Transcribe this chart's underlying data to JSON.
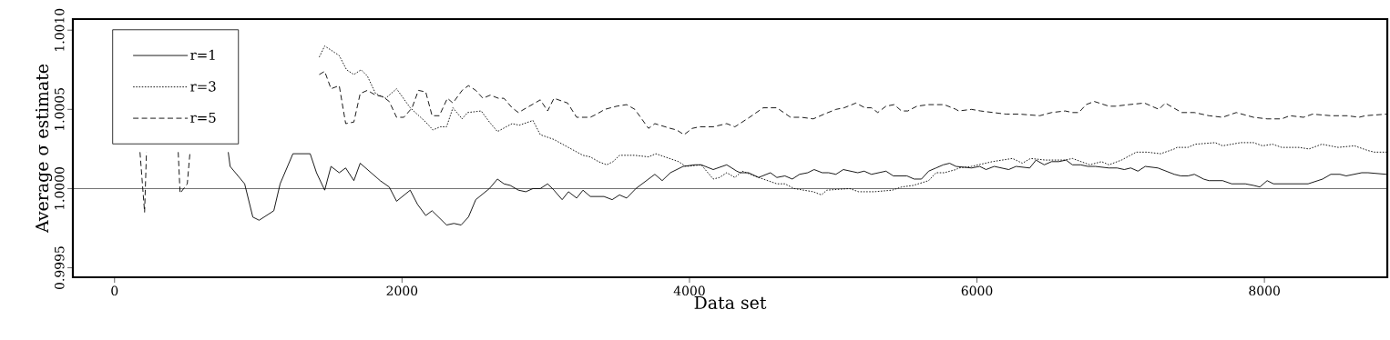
{
  "chart_data": {
    "type": "line",
    "xlabel": "Data set",
    "ylabel": "Average σ estimate",
    "xlim": [
      -290,
      8855
    ],
    "ylim": [
      0.99944,
      1.00107
    ],
    "xticks": [
      0,
      2000,
      4000,
      6000,
      8000
    ],
    "yticks": [
      {
        "value": 0.9995,
        "label": "0.9995"
      },
      {
        "value": 1.0,
        "label": "1.0000"
      },
      {
        "value": 1.0005,
        "label": "1.0005"
      },
      {
        "value": 1.001,
        "label": "1.0010"
      }
    ],
    "legend": "top left",
    "ref_lines": [
      {
        "axis": "y",
        "value": 1.0,
        "color": "#000000",
        "line_style": "solid"
      }
    ],
    "series": [
      {
        "name": "r=1",
        "color": "#000000",
        "line_style": "solid",
        "x": [
          791,
          804,
          905,
          962,
          1006,
          1108,
          1152,
          1241,
          1361,
          1405,
          1462,
          1506,
          1563,
          1608,
          1665,
          1709,
          1848,
          1911,
          1962,
          2057,
          2108,
          2165,
          2209,
          2310,
          2361,
          2411,
          2462,
          2513,
          2608,
          2664,
          2709,
          2753,
          2810,
          2861,
          2911,
          2962,
          3013,
          3057,
          3114,
          3158,
          3215,
          3259,
          3310,
          3405,
          3462,
          3513,
          3563,
          3627,
          3715,
          3759,
          3810,
          3867,
          3956,
          4038,
          4082,
          4165,
          4259,
          4329,
          4354,
          4411,
          4481,
          4563,
          4608,
          4664,
          4715,
          4766,
          4823,
          4867,
          4924,
          4968,
          5019,
          5070,
          5171,
          5215,
          5266,
          5367,
          5418,
          5513,
          5563,
          5614,
          5664,
          5715,
          5766,
          5810,
          5854,
          5962,
          6019,
          6063,
          6120,
          6221,
          6272,
          6367,
          6411,
          6468,
          6519,
          6569,
          6620,
          6664,
          6721,
          6772,
          6823,
          6918,
          6975,
          7025,
          7070,
          7120,
          7171,
          7259,
          7373,
          7418,
          7468,
          7513,
          7576,
          7614,
          7709,
          7772,
          7816,
          7867,
          7924,
          7968,
          8019,
          8063,
          8177,
          8304,
          8405,
          8462,
          8525,
          8569,
          8677,
          8721,
          8848
        ],
        "values": [
          1.00023,
          1.00014,
          1.00003,
          0.99982,
          0.9998,
          0.99986,
          1.00003,
          1.00022,
          1.00022,
          1.0001,
          0.99999,
          1.00014,
          1.0001,
          1.00013,
          1.00005,
          1.00016,
          1.00005,
          1.00001,
          0.99992,
          0.99999,
          0.9999,
          0.99983,
          0.99986,
          0.99977,
          0.99978,
          0.99977,
          0.99982,
          0.99993,
          1.0,
          1.00006,
          1.00003,
          1.00002,
          0.99999,
          0.99998,
          1.0,
          1.0,
          1.00003,
          0.99999,
          0.99993,
          0.99998,
          0.99994,
          0.99999,
          0.99995,
          0.99995,
          0.99993,
          0.99996,
          0.99994,
          1.0,
          1.00006,
          1.00009,
          1.00005,
          1.0001,
          1.00014,
          1.00015,
          1.00015,
          1.00012,
          1.00015,
          1.00011,
          1.0001,
          1.0001,
          1.00007,
          1.0001,
          1.00007,
          1.00008,
          1.00006,
          1.00009,
          1.0001,
          1.00012,
          1.0001,
          1.0001,
          1.00009,
          1.00012,
          1.0001,
          1.00011,
          1.00009,
          1.00011,
          1.00008,
          1.00008,
          1.00006,
          1.00006,
          1.00011,
          1.00013,
          1.00015,
          1.00016,
          1.00014,
          1.00013,
          1.00014,
          1.00012,
          1.00014,
          1.00012,
          1.00014,
          1.00013,
          1.00018,
          1.00015,
          1.00017,
          1.00017,
          1.00018,
          1.00015,
          1.00015,
          1.00014,
          1.00014,
          1.00013,
          1.00013,
          1.00012,
          1.00013,
          1.00011,
          1.00014,
          1.00013,
          1.00009,
          1.00008,
          1.00008,
          1.00009,
          1.00006,
          1.00005,
          1.00005,
          1.00003,
          1.00003,
          1.00003,
          1.00002,
          1.00001,
          1.00005,
          1.00003,
          1.00003,
          1.00003,
          1.00006,
          1.00009,
          1.00009,
          1.00008,
          1.0001,
          1.0001,
          1.00009
        ]
      },
      {
        "name": "r=3",
        "color": "#000000",
        "line_style": "dotted",
        "x": [
          1424,
          1462,
          1563,
          1614,
          1665,
          1715,
          1759,
          1816,
          1886,
          1962,
          2057,
          2165,
          2215,
          2266,
          2310,
          2354,
          2418,
          2456,
          2551,
          2608,
          2664,
          2766,
          2816,
          2911,
          2962,
          3057,
          3177,
          3259,
          3310,
          3367,
          3424,
          3468,
          3513,
          3620,
          3715,
          3766,
          3861,
          3924,
          3975,
          4082,
          4165,
          4209,
          4259,
          4316,
          4367,
          4481,
          4608,
          4664,
          4728,
          4861,
          4918,
          4956,
          5114,
          5177,
          5285,
          5411,
          5475,
          5557,
          5664,
          5715,
          5772,
          5854,
          5873,
          5962,
          6107,
          6247,
          6316,
          6373,
          6475,
          6614,
          6664,
          6785,
          6867,
          6918,
          7006,
          7108,
          7183,
          7278,
          7373,
          7392,
          7468,
          7519,
          7658,
          7709,
          7835,
          7924,
          7987,
          8057,
          8120,
          8240,
          8310,
          8399,
          8513,
          8626,
          8721,
          8766,
          8848
        ],
        "values": [
          1.00083,
          1.0009,
          1.00084,
          1.00075,
          1.00072,
          1.00075,
          1.00071,
          1.0006,
          1.00057,
          1.00063,
          1.00051,
          1.00042,
          1.00037,
          1.00039,
          1.00039,
          1.00051,
          1.00044,
          1.00048,
          1.00049,
          1.00042,
          1.00036,
          1.00041,
          1.0004,
          1.00043,
          1.00034,
          1.00031,
          1.00025,
          1.00021,
          1.0002,
          1.00017,
          1.00015,
          1.00017,
          1.00021,
          1.00021,
          1.0002,
          1.00022,
          1.00019,
          1.00017,
          1.00014,
          1.00015,
          1.00006,
          1.00007,
          1.0001,
          1.00007,
          1.00011,
          1.00007,
          1.00003,
          1.00003,
          1.0,
          0.99998,
          0.99996,
          0.99999,
          1.0,
          0.99998,
          0.99998,
          0.99999,
          1.00001,
          1.00002,
          1.00005,
          1.0001,
          1.0001,
          1.00012,
          1.00013,
          1.00014,
          1.00017,
          1.00019,
          1.00016,
          1.00019,
          1.00018,
          1.00018,
          1.00019,
          1.00015,
          1.00017,
          1.00015,
          1.00018,
          1.00023,
          1.00023,
          1.00022,
          1.00025,
          1.00026,
          1.00026,
          1.00028,
          1.00029,
          1.00027,
          1.00029,
          1.00029,
          1.00027,
          1.00028,
          1.00026,
          1.00026,
          1.00025,
          1.00028,
          1.00026,
          1.00027,
          1.00024,
          1.00023,
          1.00023
        ]
      },
      {
        "name": "r=5",
        "color": "#000000",
        "line_style": "dashed",
        "x": [
          177,
          209,
          222,
          330,
          443,
          456,
          506,
          525,
          900,
          1424,
          1462,
          1506,
          1563,
          1608,
          1665,
          1709,
          1759,
          1816,
          1867,
          1911,
          1962,
          2013,
          2070,
          2114,
          2165,
          2209,
          2259,
          2316,
          2354,
          2418,
          2462,
          2513,
          2563,
          2614,
          2671,
          2709,
          2766,
          2810,
          2962,
          3013,
          3057,
          3152,
          3215,
          3310,
          3354,
          3411,
          3494,
          3563,
          3620,
          3715,
          3759,
          3867,
          3911,
          3962,
          4019,
          4070,
          4165,
          4259,
          4316,
          4418,
          4513,
          4608,
          4703,
          4778,
          4861,
          4937,
          5019,
          5076,
          5158,
          5221,
          5266,
          5310,
          5367,
          5424,
          5475,
          5519,
          5582,
          5664,
          5772,
          5854,
          5873,
          5962,
          6025,
          6202,
          6297,
          6437,
          6519,
          6614,
          6664,
          6709,
          6759,
          6816,
          6918,
          6962,
          7057,
          7165,
          7266,
          7310,
          7424,
          7468,
          7513,
          7614,
          7709,
          7804,
          7924,
          8019,
          8120,
          8177,
          8272,
          8335,
          8462,
          8576,
          8658,
          8702,
          8848
        ],
        "values": [
          1.00023,
          0.99985,
          1.00023,
          null,
          1.00023,
          0.99997,
          1.00003,
          1.00023,
          null,
          1.00072,
          1.00074,
          1.00063,
          1.00065,
          1.00041,
          1.00042,
          1.0006,
          1.00062,
          1.00059,
          1.00058,
          1.00055,
          1.00045,
          1.00045,
          1.00051,
          1.00062,
          1.00061,
          1.00046,
          1.00046,
          1.00057,
          1.00054,
          1.00062,
          1.00065,
          1.00062,
          1.00057,
          1.00059,
          1.00057,
          1.00057,
          1.00051,
          1.00048,
          1.00056,
          1.00049,
          1.00057,
          1.00054,
          1.00045,
          1.00045,
          1.00047,
          1.0005,
          1.00052,
          1.00053,
          1.0005,
          1.00038,
          1.00041,
          1.00038,
          1.00037,
          1.00034,
          1.00038,
          1.00039,
          1.00039,
          1.00041,
          1.00039,
          1.00045,
          1.00051,
          1.00051,
          1.00045,
          1.00045,
          1.00044,
          1.00047,
          1.0005,
          1.00051,
          1.00054,
          1.00051,
          1.00051,
          1.00048,
          1.00052,
          1.00053,
          1.00049,
          1.00049,
          1.00052,
          1.00053,
          1.00053,
          1.0005,
          1.00049,
          1.0005,
          1.00049,
          1.00047,
          1.00047,
          1.00046,
          1.00048,
          1.00049,
          1.00048,
          1.00048,
          1.00053,
          1.00055,
          1.00052,
          1.00052,
          1.00053,
          1.00054,
          1.0005,
          1.00054,
          1.00048,
          1.00048,
          1.00048,
          1.00046,
          1.00045,
          1.00048,
          1.00045,
          1.00044,
          1.00044,
          1.00046,
          1.00045,
          1.00047,
          1.00046,
          1.00046,
          1.00045,
          1.00046,
          1.00047
        ]
      }
    ]
  }
}
